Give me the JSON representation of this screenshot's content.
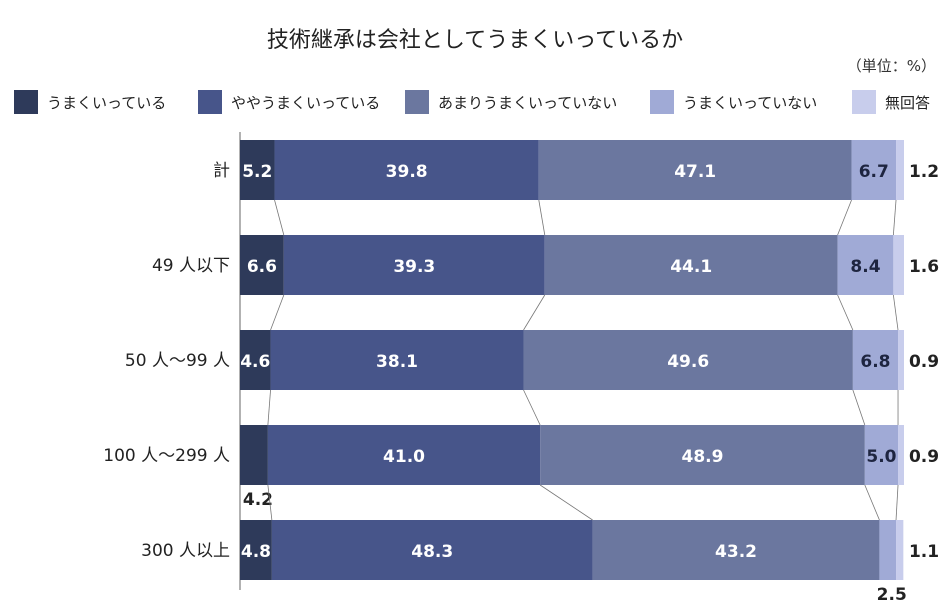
{
  "chart_data": {
    "type": "bar",
    "orientation": "horizontal",
    "stacked": true,
    "title": "技術継承は会社としてうまくいっているか",
    "unit": "（単位：%）",
    "xlim": [
      0,
      100
    ],
    "grid": false,
    "legend_position": "top",
    "categories": [
      "計",
      "49 人以下",
      "50 人〜99 人",
      "100 人〜299 人",
      "300 人以上"
    ],
    "series": [
      {
        "name": "うまくいっている",
        "color": "#2e3a5a",
        "values": [
          5.2,
          6.6,
          4.6,
          4.2,
          4.8
        ]
      },
      {
        "name": "ややうまくいっている",
        "color": "#47558a",
        "values": [
          39.8,
          39.3,
          38.1,
          41.0,
          48.3
        ]
      },
      {
        "name": "あまりうまくいっていない",
        "color": "#6b779f",
        "values": [
          47.1,
          44.1,
          49.6,
          48.9,
          43.2
        ]
      },
      {
        "name": "うまくいっていない",
        "color": "#a0aad6",
        "values": [
          6.7,
          8.4,
          6.8,
          5.0,
          2.5
        ]
      },
      {
        "name": "無回答",
        "color": "#c8cdec",
        "values": [
          1.2,
          1.6,
          0.9,
          0.9,
          1.1
        ]
      }
    ],
    "value_labels": [
      [
        "5.2",
        "39.8",
        "47.1",
        "6.7",
        "1.2"
      ],
      [
        "6.6",
        "39.3",
        "44.1",
        "8.4",
        "1.6"
      ],
      [
        "4.6",
        "38.1",
        "49.6",
        "6.8",
        "0.9"
      ],
      [
        "4.2",
        "41.0",
        "48.9",
        "5.0",
        "0.9"
      ],
      [
        "4.8",
        "48.3",
        "43.2",
        "2.5",
        "1.1"
      ]
    ]
  }
}
